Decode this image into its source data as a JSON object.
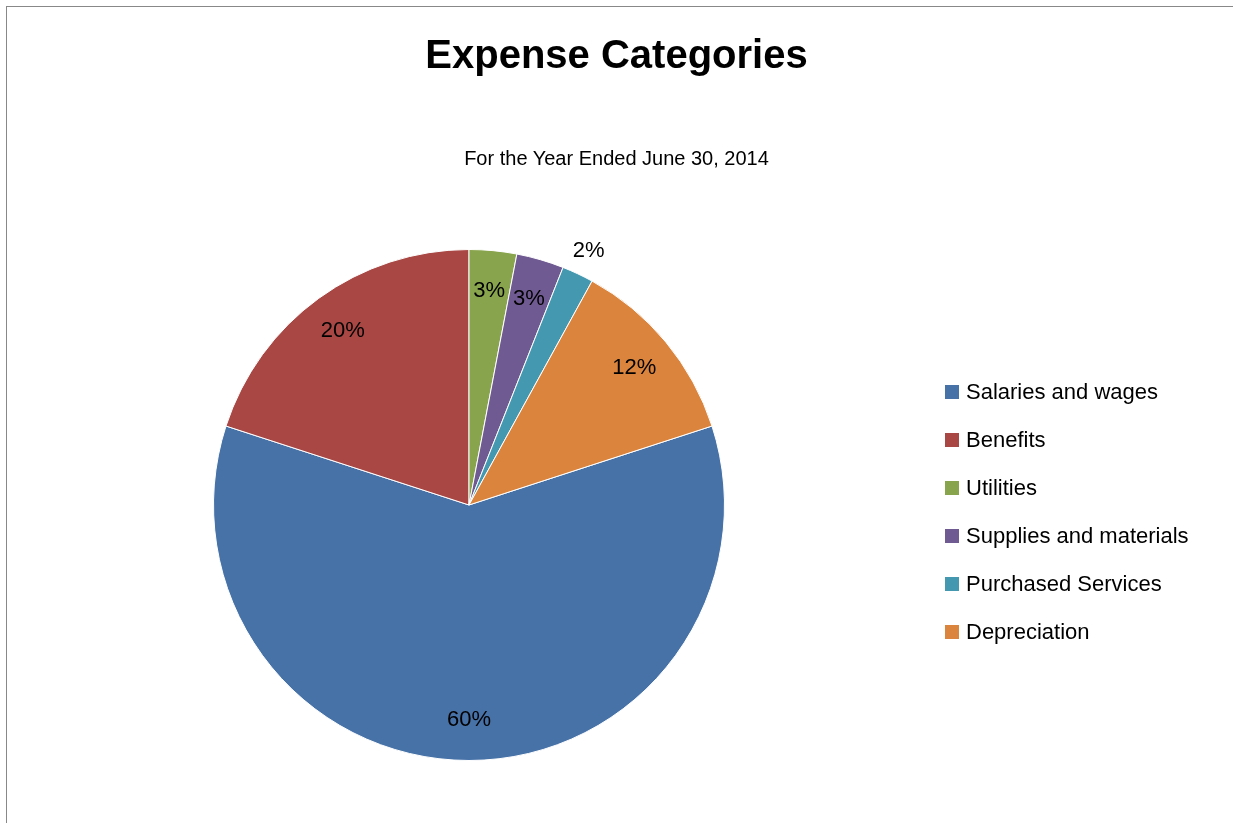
{
  "chart_data": {
    "type": "pie",
    "title": "Expense Categories",
    "subtitle": "For the Year Ended June 30, 2014",
    "categories": [
      "Salaries and wages",
      "Benefits",
      "Utilities",
      "Supplies and materials",
      "Purchased Services",
      "Depreciation"
    ],
    "values": [
      60,
      20,
      3,
      3,
      2,
      12
    ],
    "value_labels": [
      "60%",
      "20%",
      "3%",
      "3%",
      "2%",
      "12%"
    ],
    "colors": [
      "#4672a8",
      "#a84744",
      "#88a44c",
      "#705a92",
      "#4499b1",
      "#db843d"
    ],
    "legend": "right"
  }
}
